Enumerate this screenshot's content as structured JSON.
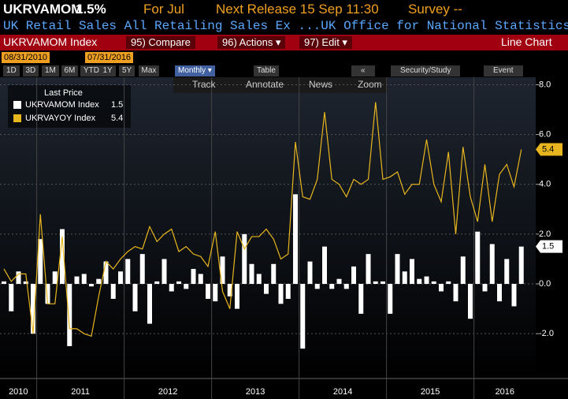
{
  "header": {
    "ticker": "UKRVAMOM",
    "last": "1.5%",
    "period": "For Jul",
    "next_release": "Next Release 15 Sep 11:30",
    "survey": "Survey --",
    "description": "UK Retail Sales All Retailing Sales Ex ...UK Office for National Statistics"
  },
  "menu": {
    "security": "UKRVAMOM Index",
    "items": [
      "95) Compare",
      "96) Actions ▾",
      "97) Edit ▾"
    ],
    "view": "Line Chart"
  },
  "dates": {
    "start": "08/31/2010",
    "end": "07/31/2016"
  },
  "toolbar": {
    "ranges": [
      "1D",
      "3D",
      "1M",
      "6M",
      "YTD",
      "1Y",
      "5Y",
      "Max"
    ],
    "frequency": "Monthly ▾",
    "table": "Table",
    "back": "«",
    "study": "Security/Study",
    "event": "Event"
  },
  "tools": [
    "Track",
    "Annotate",
    "News",
    "Zoom"
  ],
  "chart_data": {
    "type": "combo",
    "legend_title": "Last Price",
    "legend": "upper left",
    "grid": true,
    "x_labels": [
      "2010",
      "2011",
      "2012",
      "2013",
      "2014",
      "2015",
      "2016"
    ],
    "ylim": [
      -3.8,
      8.3
    ],
    "yticks": [
      {
        "value": -2,
        "label": "-2.0"
      },
      {
        "value": 0,
        "label": "0.0"
      },
      {
        "value": 2,
        "label": "2.0"
      },
      {
        "value": 4,
        "label": "4.0"
      },
      {
        "value": 6,
        "label": "6.0"
      },
      {
        "value": 8,
        "label": "8.0"
      }
    ],
    "series": [
      {
        "name": "UKRVAMOM Index",
        "type": "bar",
        "color": "#ffffff",
        "values": [
          0.1,
          -1.1,
          0.5,
          0.1,
          -2.0,
          1.8,
          -0.8,
          0.5,
          2.2,
          -2.5,
          0.3,
          0.4,
          -0.1,
          0.2,
          0.9,
          -0.6,
          0.5,
          1.0,
          -1.1,
          1.2,
          -1.6,
          0.1,
          1.0,
          -0.3,
          0.1,
          -0.2,
          0.6,
          0.4,
          -0.6,
          -0.7,
          1.1,
          -0.5,
          -1.0,
          2.0,
          0.8,
          0.4,
          -0.4,
          0.8,
          -0.8,
          -0.6,
          3.6,
          -2.6,
          0.9,
          -0.2,
          1.5,
          -0.2,
          0.2,
          -0.2,
          0.7,
          -1.2,
          1.2,
          0.1,
          0.1,
          -1.2,
          1.2,
          0.5,
          1.0,
          0.2,
          0.3,
          0.1,
          -0.3,
          0.1,
          -0.7,
          1.1,
          -1.4,
          2.1,
          -0.3,
          1.6,
          -0.7,
          1.0,
          -0.9,
          1.5
        ]
      },
      {
        "name": "UKRVAYOY Index",
        "type": "line",
        "color": "#e8b61e",
        "values": [
          0.6,
          0.1,
          0.4,
          0.4,
          -2.0,
          2.8,
          -0.8,
          -0.8,
          1.9,
          -1.8,
          -1.8,
          -2.0,
          -2.1,
          -0.5,
          0.9,
          0.6,
          1.0,
          1.3,
          1.5,
          1.4,
          2.3,
          1.7,
          2.0,
          2.2,
          1.3,
          1.5,
          1.2,
          1.1,
          0.7,
          2.1,
          -0.3,
          -1.0,
          2.1,
          1.4,
          1.9,
          1.9,
          2.2,
          1.8,
          1.0,
          1.2,
          5.7,
          3.5,
          3.4,
          4.2,
          6.9,
          4.2,
          4.0,
          3.5,
          4.2,
          4.0,
          4.2,
          7.3,
          4.2,
          4.3,
          4.5,
          3.6,
          4.0,
          4.0,
          5.8,
          4.0,
          3.3,
          5.3,
          2.0,
          5.5,
          3.5,
          2.5,
          4.8,
          2.5,
          4.4,
          4.8,
          3.9,
          5.4
        ]
      }
    ]
  }
}
